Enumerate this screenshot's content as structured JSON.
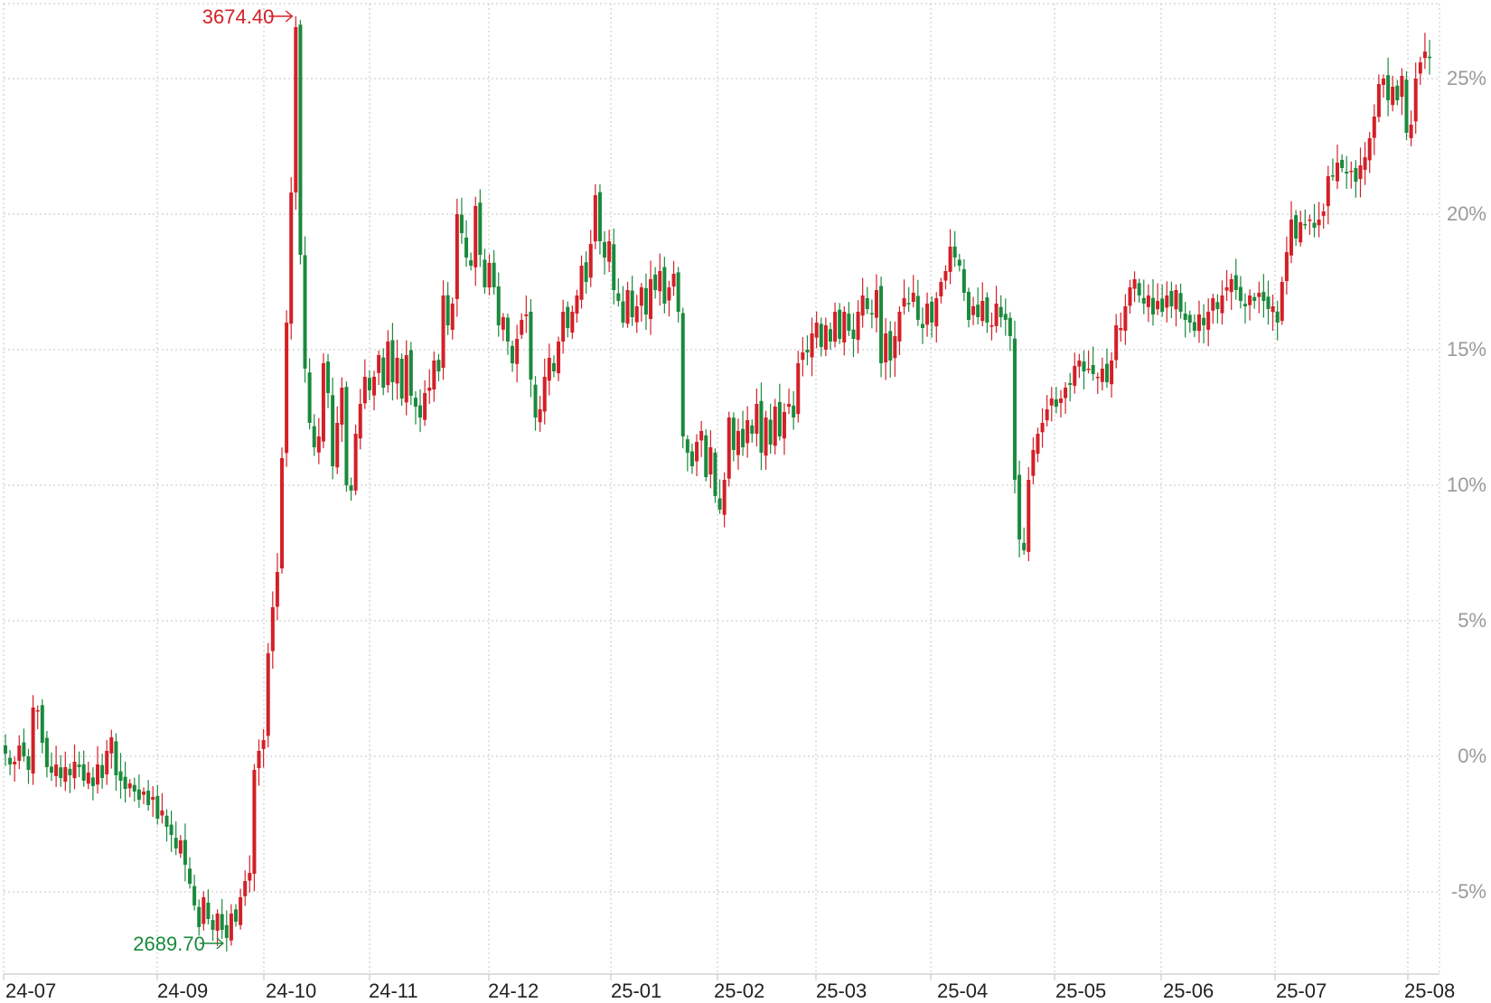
{
  "chart_data": {
    "type": "candlestick",
    "x_ticks": [
      "24-07",
      "24-09",
      "24-10",
      "24-11",
      "24-12",
      "25-01",
      "25-02",
      "25-03",
      "25-04",
      "25-05",
      "25-06",
      "25-07",
      "25-08"
    ],
    "y_ticks": [
      "25%",
      "20%",
      "15%",
      "10%",
      "5%",
      "0%",
      "-5%"
    ],
    "y_range_pct": [
      -7.8,
      27.8
    ],
    "grid": true,
    "colors": {
      "up": "#d32027",
      "down": "#1a8a3c"
    },
    "annotations": [
      {
        "id": "max",
        "text": "3674.40",
        "pct": 27.3,
        "color": "#d32027"
      },
      {
        "id": "min",
        "text": "2689.70",
        "pct": -6.9,
        "color": "#1a8a3c"
      }
    ],
    "series_pct": [
      0.1,
      -0.3,
      -0.2,
      0.4,
      0.0,
      -0.5,
      1.8,
      1.7,
      0.5,
      -0.4,
      -0.6,
      -0.3,
      -0.8,
      -0.4,
      -0.7,
      -0.2,
      -0.4,
      -0.9,
      -0.6,
      -1.1,
      -0.3,
      -0.8,
      0.2,
      0.7,
      -0.7,
      -0.9,
      -1.2,
      -1.0,
      -1.3,
      -1.6,
      -1.3,
      -1.8,
      -1.5,
      -2.3,
      -2.0,
      -2.6,
      -2.9,
      -3.4,
      -3.1,
      -4.0,
      -4.7,
      -5.5,
      -6.3,
      -5.2,
      -6.0,
      -6.4,
      -5.8,
      -6.4,
      -6.7,
      -5.8,
      -6.1,
      -5.2,
      -4.6,
      -4.3,
      -0.5,
      0.2,
      0.6,
      3.8,
      5.5,
      6.8,
      11.0,
      16.0,
      20.8,
      26.9,
      18.5,
      14.3,
      12.3,
      11.4,
      11.8,
      14.5,
      13.4,
      10.7,
      12.3,
      13.6,
      10.0,
      9.8,
      11.9,
      13.0,
      14.0,
      13.5,
      14.0,
      14.8,
      13.6,
      15.3,
      13.8,
      14.7,
      13.2,
      14.8,
      13.3,
      12.9,
      12.5,
      13.4,
      13.6,
      14.6,
      14.2,
      17.0,
      15.9,
      16.7,
      20.0,
      19.3,
      18.4,
      18.1,
      20.3,
      18.5,
      17.3,
      18.2,
      17.3,
      15.9,
      16.2,
      15.3,
      14.5,
      15.4,
      16.1,
      16.3,
      13.9,
      12.5,
      12.8,
      14.0,
      14.7,
      14.2,
      15.3,
      16.4,
      15.8,
      16.4,
      17.0,
      18.1,
      17.5,
      18.9,
      20.7,
      19.0,
      18.4,
      19.0,
      17.2,
      16.8,
      16.0,
      17.2,
      16.2,
      16.6,
      17.3,
      16.3,
      17.6,
      17.2,
      17.9,
      16.7,
      17.3,
      17.8,
      16.4,
      11.8,
      11.2,
      10.7,
      11.6,
      12.0,
      10.3,
      11.4,
      9.6,
      9.1,
      10.2,
      12.5,
      11.3,
      12.0,
      11.4,
      12.4,
      11.9,
      13.0,
      11.2,
      12.5,
      11.5,
      12.9,
      11.8,
      12.7,
      13.0,
      12.5,
      14.5,
      14.9,
      14.9,
      15.6,
      16.0,
      15.1,
      15.9,
      15.3,
      16.4,
      15.4,
      16.4,
      15.7,
      15.4,
      16.4,
      17.0,
      16.5,
      16.3,
      17.2,
      14.5,
      15.6,
      14.6,
      15.5,
      16.4,
      16.9,
      16.7,
      17.1,
      16.1,
      15.8,
      16.7,
      16.0,
      16.9,
      17.5,
      17.9,
      18.8,
      18.4,
      18.1,
      17.1,
      16.1,
      16.6,
      16.2,
      16.8,
      16.0,
      15.9,
      16.7,
      16.2,
      16.1,
      15.5,
      10.2,
      8.0,
      7.6,
      10.2,
      11.3,
      11.9,
      12.3,
      12.8,
      13.2,
      12.9,
      13.2,
      13.6,
      13.7,
      14.4,
      14.6,
      14.2,
      14.3,
      14.1,
      14.0,
      14.3,
      13.8,
      14.6,
      15.9,
      15.8,
      16.6,
      17.3,
      17.6,
      17.0,
      16.7,
      17.0,
      16.3,
      16.8,
      16.4,
      17.0,
      16.6,
      17.2,
      16.4,
      16.1,
      16.0,
      15.7,
      16.3,
      15.9,
      16.4,
      16.9,
      16.5,
      17.0,
      17.3,
      17.6,
      17.2,
      16.8,
      16.6,
      17.0,
      16.8,
      17.1,
      16.8,
      16.5,
      16.6,
      16.0,
      17.5,
      18.6,
      19.8,
      19.1,
      19.7,
      19.6,
      19.8,
      19.5,
      19.8,
      20.1,
      21.4,
      21.4,
      21.9,
      21.7,
      21.5,
      21.6,
      21.2,
      21.8,
      22.1,
      22.8,
      23.6,
      24.8,
      25.0,
      24.2,
      24.7,
      24.2,
      25.1,
      23.0,
      23.3,
      25.0,
      25.6,
      26.0,
      25.8
    ]
  }
}
